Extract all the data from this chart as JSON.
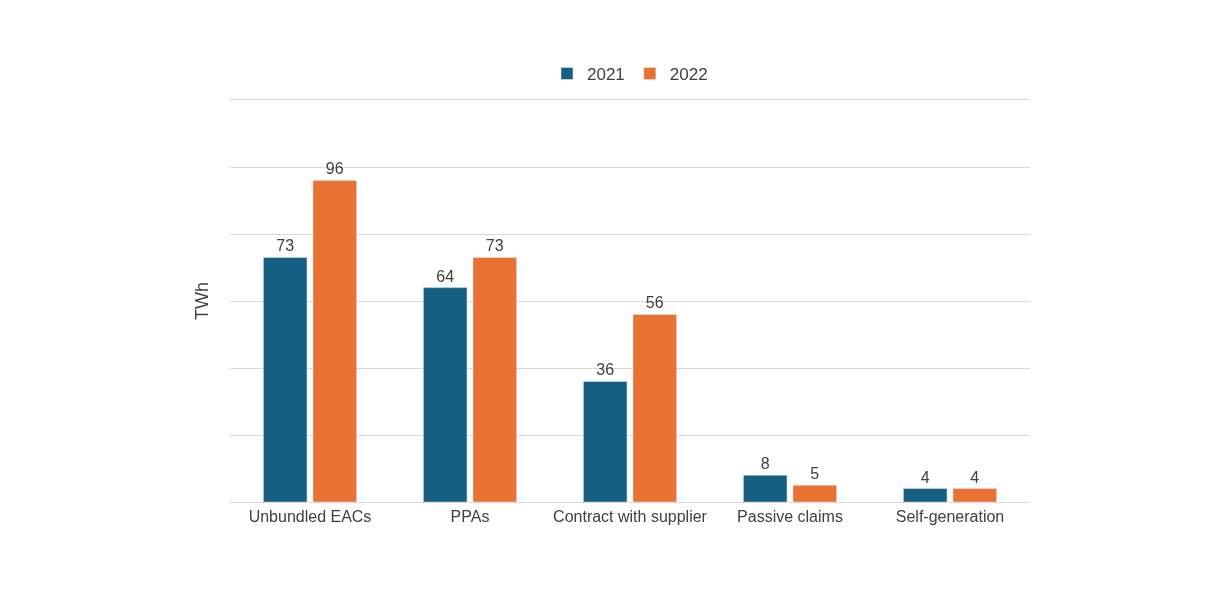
{
  "chart_data": {
    "type": "bar",
    "ylabel": "TWh",
    "categories": [
      "Unbundled EACs",
      "PPAs",
      "Contract with supplier",
      "Passive claims",
      "Self-generation"
    ],
    "series": [
      {
        "name": "2021",
        "color": "#156082",
        "values": [
          73,
          64,
          36,
          8,
          4
        ]
      },
      {
        "name": "2022",
        "color": "#e97132",
        "values": [
          96,
          73,
          56,
          5,
          4
        ]
      }
    ],
    "ylim": [
      0,
      120
    ],
    "yticks": [
      {
        "value": 0,
        "label": null
      },
      {
        "value": 20,
        "label": null
      },
      {
        "value": 40,
        "label": null
      },
      {
        "value": 60,
        "label": null
      },
      {
        "value": 80,
        "label": null
      },
      {
        "value": 100,
        "label": null
      },
      {
        "value": 120,
        "label": null
      }
    ],
    "tick_labels": "x",
    "grid": "y",
    "legend": "top",
    "data_labels": true
  }
}
